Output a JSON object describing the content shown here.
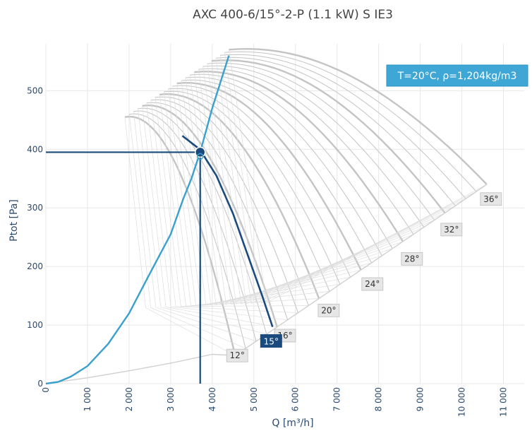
{
  "chart_data": {
    "type": "line",
    "title": "AXC 400-6/15°-2-P (1.1 kW) S IE3",
    "xlabel": "Q [m³/h]",
    "ylabel": "Ptot [Pa]",
    "xlim": [
      0,
      11500
    ],
    "ylim": [
      0,
      580
    ],
    "x_ticks": [
      0,
      1000,
      2000,
      3000,
      4000,
      5000,
      6000,
      7000,
      8000,
      9000,
      10000,
      11000
    ],
    "x_tick_labels": [
      "0",
      "1 000",
      "2 000",
      "3 000",
      "4 000",
      "5 000",
      "6 000",
      "7 000",
      "8 000",
      "9 000",
      "10 000",
      "11 000"
    ],
    "y_ticks": [
      0,
      100,
      200,
      300,
      400,
      500
    ],
    "y_tick_labels": [
      "0",
      "100",
      "200",
      "300",
      "400",
      "500"
    ],
    "grid": true,
    "conditions_label": "T=20°C, ρ=1,204kg/m3",
    "operating_point": {
      "x": 3710,
      "y": 395
    },
    "selected_curve": {
      "label": "15°",
      "points": [
        [
          3280,
          423
        ],
        [
          3700,
          400
        ],
        [
          4100,
          355
        ],
        [
          4500,
          290
        ],
        [
          4900,
          210
        ],
        [
          5200,
          150
        ],
        [
          5450,
          97
        ]
      ]
    },
    "system_curve": {
      "points": [
        [
          0,
          0
        ],
        [
          300,
          3
        ],
        [
          600,
          12
        ],
        [
          1000,
          30
        ],
        [
          1500,
          68
        ],
        [
          2000,
          120
        ],
        [
          2500,
          188
        ],
        [
          3000,
          255
        ],
        [
          3300,
          315
        ],
        [
          3500,
          350
        ],
        [
          3710,
          395
        ],
        [
          4000,
          470
        ],
        [
          4400,
          560
        ]
      ]
    },
    "angle_family": {
      "angles": [
        12,
        13,
        14,
        15,
        16,
        17,
        18,
        19,
        20,
        21,
        22,
        23,
        24,
        25,
        26,
        27,
        28,
        29,
        30,
        31,
        32,
        33,
        34,
        35,
        36
      ],
      "bold_angles": [
        12,
        16,
        20,
        24,
        28,
        32,
        36
      ],
      "labels": [
        {
          "text": "12°",
          "x": 4600,
          "y": 48
        },
        {
          "text": "16°",
          "x": 5750,
          "y": 82
        },
        {
          "text": "20°",
          "x": 6800,
          "y": 125
        },
        {
          "text": "24°",
          "x": 7850,
          "y": 170
        },
        {
          "text": "28°",
          "x": 8800,
          "y": 213
        },
        {
          "text": "32°",
          "x": 9750,
          "y": 263
        },
        {
          "text": "36°",
          "x": 10700,
          "y": 315
        }
      ]
    },
    "colors": {
      "selected_curve": "#1b4b7e",
      "system_curve": "#3aa0cc",
      "family_curves": "#c4c4c4",
      "operating_lines": "#1b4b7e",
      "conditions_box": "#3ea7d6"
    }
  }
}
